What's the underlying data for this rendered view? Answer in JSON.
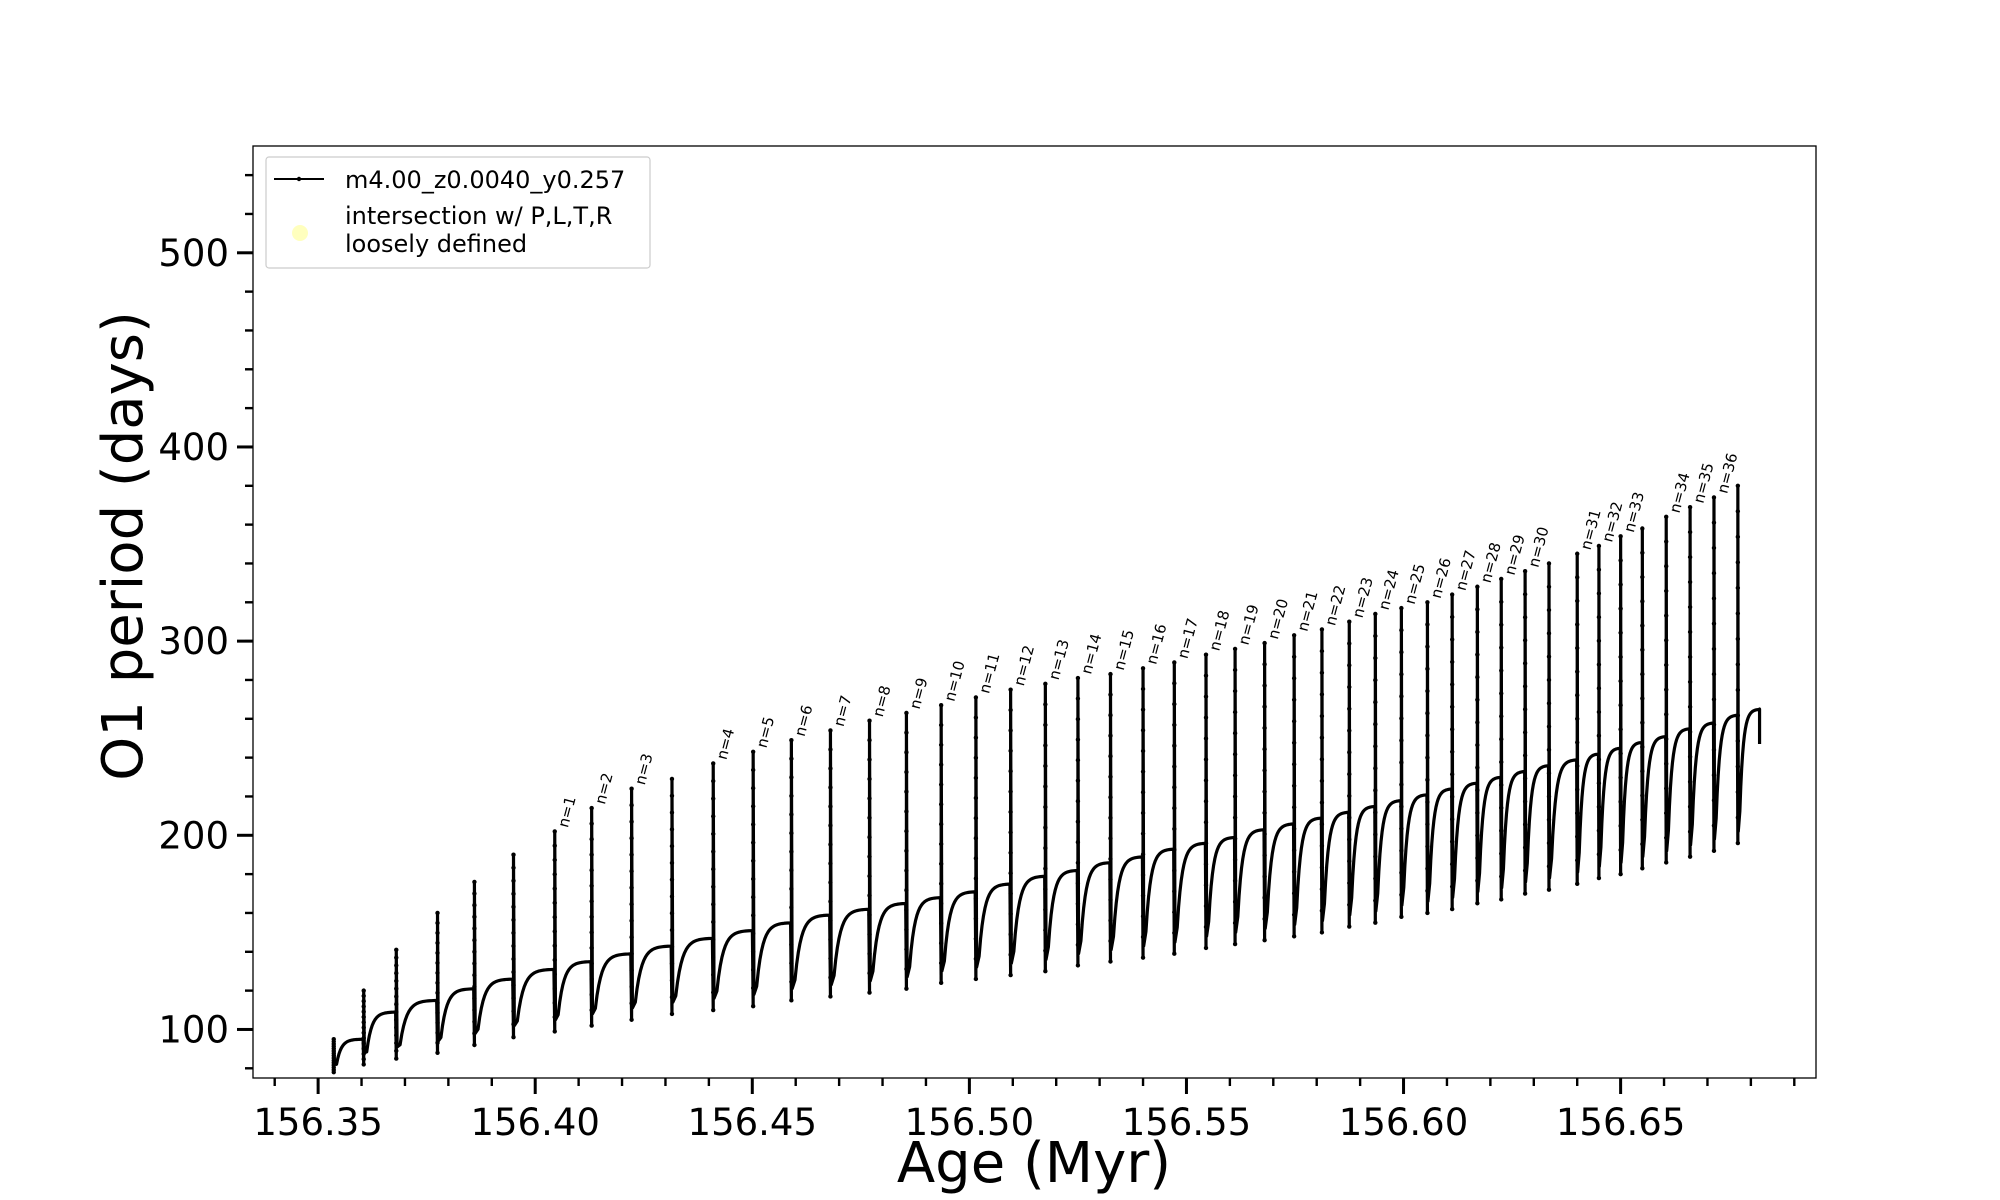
{
  "chart_data": {
    "type": "line",
    "xlabel": "Age (Myr)",
    "ylabel": "O1 period (days)",
    "xlim": [
      156.335,
      156.695
    ],
    "ylim": [
      75,
      555
    ],
    "x_ticks": [
      156.35,
      156.4,
      156.45,
      156.5,
      156.55,
      156.6,
      156.65
    ],
    "x_tick_labels": [
      "156.35",
      "156.40",
      "156.45",
      "156.50",
      "156.55",
      "156.60",
      "156.65"
    ],
    "y_ticks": [
      100,
      200,
      300,
      400,
      500
    ],
    "y_tick_labels": [
      "100",
      "200",
      "300",
      "400",
      "500"
    ],
    "x_minor_step": 0.01,
    "y_minor_step": 20,
    "grid": false,
    "legend_position": "top-left",
    "legend": {
      "series_label": "m4.00_z0.0040_y0.257",
      "intersection_label_line1": "intersection w/ P,L,T,R",
      "intersection_label_line2": "loosely defined"
    },
    "series": [
      {
        "name": "m4.00_z0.0040_y0.257",
        "color": "#000000",
        "pulses": [
          {
            "x": 156.3536,
            "peak": 95,
            "low": 78,
            "plateau": 95
          },
          {
            "x": 156.3605,
            "peak": 120,
            "low": 82,
            "plateau": 109
          },
          {
            "x": 156.368,
            "peak": 141,
            "low": 85,
            "plateau": 115
          },
          {
            "x": 156.3775,
            "peak": 160,
            "low": 88,
            "plateau": 121
          },
          {
            "x": 156.386,
            "peak": 176,
            "low": 92,
            "plateau": 126
          },
          {
            "x": 156.395,
            "peak": 190,
            "low": 96,
            "plateau": 131
          },
          {
            "x": 156.4045,
            "peak": 202,
            "low": 99,
            "plateau": 135
          },
          {
            "x": 156.413,
            "peak": 214,
            "low": 102,
            "plateau": 139
          },
          {
            "x": 156.4222,
            "peak": 224,
            "low": 105,
            "plateau": 143
          },
          {
            "x": 156.4315,
            "peak": 229,
            "low": 108,
            "plateau": 147
          },
          {
            "x": 156.441,
            "peak": 237,
            "low": 110,
            "plateau": 151
          },
          {
            "x": 156.4502,
            "peak": 243,
            "low": 112,
            "plateau": 155
          },
          {
            "x": 156.459,
            "peak": 249,
            "low": 115,
            "plateau": 159
          },
          {
            "x": 156.468,
            "peak": 254,
            "low": 117,
            "plateau": 162
          },
          {
            "x": 156.477,
            "peak": 259,
            "low": 119,
            "plateau": 165
          },
          {
            "x": 156.4855,
            "peak": 263,
            "low": 121,
            "plateau": 168
          },
          {
            "x": 156.4935,
            "peak": 267,
            "low": 124,
            "plateau": 171
          },
          {
            "x": 156.5015,
            "peak": 271,
            "low": 126,
            "plateau": 175
          },
          {
            "x": 156.5095,
            "peak": 275,
            "low": 128,
            "plateau": 179
          },
          {
            "x": 156.5175,
            "peak": 278,
            "low": 130,
            "plateau": 182
          },
          {
            "x": 156.525,
            "peak": 281,
            "low": 133,
            "plateau": 186
          },
          {
            "x": 156.5325,
            "peak": 283,
            "low": 135,
            "plateau": 189
          },
          {
            "x": 156.54,
            "peak": 286,
            "low": 137,
            "plateau": 193
          },
          {
            "x": 156.5472,
            "peak": 289,
            "low": 139,
            "plateau": 196
          },
          {
            "x": 156.5545,
            "peak": 293,
            "low": 142,
            "plateau": 199
          },
          {
            "x": 156.5612,
            "peak": 296,
            "low": 144,
            "plateau": 203
          },
          {
            "x": 156.568,
            "peak": 299,
            "low": 146,
            "plateau": 206
          },
          {
            "x": 156.5748,
            "peak": 303,
            "low": 148,
            "plateau": 209
          },
          {
            "x": 156.5812,
            "peak": 306,
            "low": 150,
            "plateau": 212
          },
          {
            "x": 156.5875,
            "peak": 310,
            "low": 153,
            "plateau": 215
          },
          {
            "x": 156.5935,
            "peak": 314,
            "low": 155,
            "plateau": 218
          },
          {
            "x": 156.5995,
            "peak": 317,
            "low": 158,
            "plateau": 221
          },
          {
            "x": 156.6055,
            "peak": 320,
            "low": 160,
            "plateau": 224
          },
          {
            "x": 156.6112,
            "peak": 324,
            "low": 162,
            "plateau": 227
          },
          {
            "x": 156.617,
            "peak": 328,
            "low": 165,
            "plateau": 230
          },
          {
            "x": 156.6225,
            "peak": 332,
            "low": 167,
            "plateau": 233
          },
          {
            "x": 156.628,
            "peak": 336,
            "low": 170,
            "plateau": 236
          },
          {
            "x": 156.6335,
            "peak": 340,
            "low": 172,
            "plateau": 239
          },
          {
            "x": 156.64,
            "peak": 345,
            "low": 175,
            "plateau": 242
          },
          {
            "x": 156.645,
            "peak": 349,
            "low": 178,
            "plateau": 245
          },
          {
            "x": 156.65,
            "peak": 354,
            "low": 180,
            "plateau": 248
          },
          {
            "x": 156.655,
            "peak": 358,
            "low": 183,
            "plateau": 251
          },
          {
            "x": 156.6605,
            "peak": 364,
            "low": 186,
            "plateau": 255
          },
          {
            "x": 156.666,
            "peak": 369,
            "low": 189,
            "plateau": 258
          },
          {
            "x": 156.6715,
            "peak": 374,
            "low": 192,
            "plateau": 262
          },
          {
            "x": 156.677,
            "peak": 380,
            "low": 196,
            "plateau": 265
          }
        ],
        "end": {
          "x": 156.682,
          "y": 247
        }
      }
    ],
    "pulse_labels": [
      {
        "text": "n=1",
        "x": 156.4045,
        "y": 202
      },
      {
        "text": "n=2",
        "x": 156.413,
        "y": 214
      },
      {
        "text": "n=3",
        "x": 156.4222,
        "y": 224
      },
      {
        "text": "n=4",
        "x": 156.441,
        "y": 237
      },
      {
        "text": "n=5",
        "x": 156.4502,
        "y": 243
      },
      {
        "text": "n=6",
        "x": 156.459,
        "y": 249
      },
      {
        "text": "n=7",
        "x": 156.468,
        "y": 254
      },
      {
        "text": "n=8",
        "x": 156.477,
        "y": 259
      },
      {
        "text": "n=9",
        "x": 156.4855,
        "y": 263
      },
      {
        "text": "n=10",
        "x": 156.4935,
        "y": 267
      },
      {
        "text": "n=11",
        "x": 156.5015,
        "y": 271
      },
      {
        "text": "n=12",
        "x": 156.5095,
        "y": 275
      },
      {
        "text": "n=13",
        "x": 156.5175,
        "y": 278
      },
      {
        "text": "n=14",
        "x": 156.525,
        "y": 281
      },
      {
        "text": "n=15",
        "x": 156.5325,
        "y": 283
      },
      {
        "text": "n=16",
        "x": 156.54,
        "y": 286
      },
      {
        "text": "n=17",
        "x": 156.5472,
        "y": 289
      },
      {
        "text": "n=18",
        "x": 156.5545,
        "y": 293
      },
      {
        "text": "n=19",
        "x": 156.5612,
        "y": 296
      },
      {
        "text": "n=20",
        "x": 156.568,
        "y": 299
      },
      {
        "text": "n=21",
        "x": 156.5748,
        "y": 303
      },
      {
        "text": "n=22",
        "x": 156.5812,
        "y": 306
      },
      {
        "text": "n=23",
        "x": 156.5875,
        "y": 310
      },
      {
        "text": "n=24",
        "x": 156.5935,
        "y": 314
      },
      {
        "text": "n=25",
        "x": 156.5995,
        "y": 317
      },
      {
        "text": "n=26",
        "x": 156.6055,
        "y": 320
      },
      {
        "text": "n=27",
        "x": 156.6112,
        "y": 324
      },
      {
        "text": "n=28",
        "x": 156.617,
        "y": 328
      },
      {
        "text": "n=29",
        "x": 156.6225,
        "y": 332
      },
      {
        "text": "n=30",
        "x": 156.628,
        "y": 336
      },
      {
        "text": "n=31",
        "x": 156.64,
        "y": 345
      },
      {
        "text": "n=32",
        "x": 156.645,
        "y": 349
      },
      {
        "text": "n=33",
        "x": 156.65,
        "y": 354
      },
      {
        "text": "n=34",
        "x": 156.6605,
        "y": 364
      },
      {
        "text": "n=35",
        "x": 156.666,
        "y": 369
      },
      {
        "text": "n=36",
        "x": 156.6715,
        "y": 374
      }
    ],
    "colors": {
      "line": "#000000",
      "intersection_marker": "#ffffb3",
      "frame": "#000000",
      "legend_border": "#cccccc"
    }
  }
}
